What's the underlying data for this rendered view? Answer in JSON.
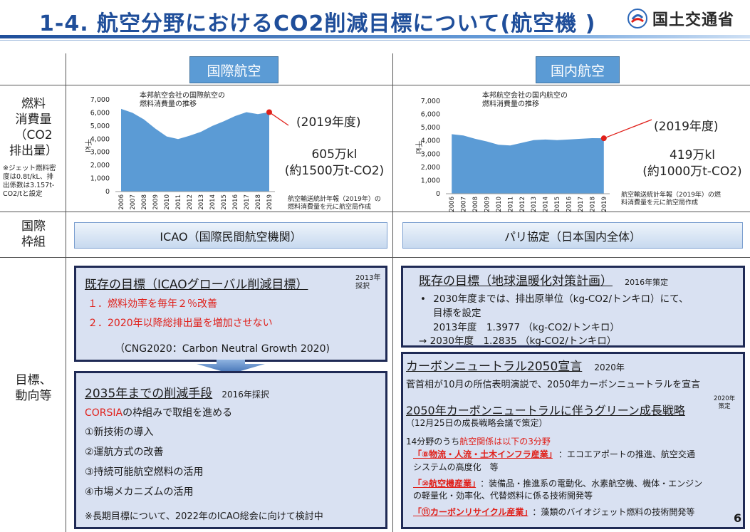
{
  "header": {
    "title": "1-4. 航空分野におけるCO2削減目標について(航空機 )",
    "ministry": "国土交通省"
  },
  "columns": {
    "international": "国際航空",
    "domestic": "国内航空"
  },
  "rows": {
    "fuel_label": [
      "燃料",
      "消費量",
      "（CO2",
      "排出量）"
    ],
    "fuel_note": [
      "※ジェット燃料密",
      "度は0.8t/kL、排",
      "出係数は3.157t-",
      "CO2/tと設定"
    ],
    "framework_label": [
      "国際",
      "枠組"
    ],
    "goals_label": [
      "目標、",
      "動向等"
    ]
  },
  "chart_data": [
    {
      "type": "area",
      "title": "本邦航空会社の国際航空の燃料消費量の推移",
      "title_lines": [
        "本邦航空会社の国際航空の",
        "燃料消費量の推移"
      ],
      "ylabel": "千kl",
      "ylim": [
        0,
        7000
      ],
      "yticks": [
        "7,000",
        "6,000",
        "5,000",
        "4,000",
        "3,000",
        "2,000",
        "1,000",
        "0"
      ],
      "x": [
        "2006",
        "2007",
        "2008",
        "2009",
        "2010",
        "2011",
        "2012",
        "2013",
        "2014",
        "2015",
        "2016",
        "2017",
        "2018",
        "2019"
      ],
      "values": [
        6300,
        6000,
        5500,
        4800,
        4200,
        4000,
        4250,
        4550,
        5000,
        5350,
        5750,
        6050,
        5900,
        6050
      ],
      "color": "#5b9bd5",
      "marker_year": "(2019年度)",
      "marker_value_lines": [
        "605万kl",
        "(約1500万t-CO2)"
      ],
      "source_lines": [
        "航空輸送統計年報（2019年）の",
        "燃料消費量を元に航空局作成"
      ]
    },
    {
      "type": "area",
      "title": "本邦航空会社の国内航空の燃料消費量の推移",
      "title_lines": [
        "本邦航空会社の国内航空の",
        "燃料消費量の推移"
      ],
      "ylabel": "千kl",
      "ylim": [
        0,
        7000
      ],
      "yticks": [
        "7,000",
        "6,000",
        "5,000",
        "4,000",
        "3,000",
        "2,000",
        "1,000",
        "0"
      ],
      "x": [
        "2006",
        "2007",
        "2008",
        "2009",
        "2010",
        "2011",
        "2012",
        "2013",
        "2014",
        "2015",
        "2016",
        "2017",
        "2018",
        "2019"
      ],
      "values": [
        4500,
        4400,
        4150,
        3950,
        3700,
        3650,
        3850,
        4050,
        4100,
        4050,
        4100,
        4150,
        4200,
        4190
      ],
      "color": "#5b9bd5",
      "marker_year": "(2019年度)",
      "marker_value_lines": [
        "419万kl",
        "(約1000万t-CO2)"
      ],
      "source_lines": [
        "航空輸送統計年報（2019年）の燃",
        "料消費量を元に航空局作成"
      ]
    }
  ],
  "frameworks": {
    "international": "ICAO（国際民間航空機関）",
    "domestic": "パリ協定（日本国内全体）"
  },
  "intl_existing": {
    "heading": "既存の目標（ICAOグローバル削減目標）",
    "year_lines": [
      "2013年",
      "採択"
    ],
    "item1": "１．燃料効率を毎年２％改善",
    "item2": "２．2020年以降総排出量を増加させない",
    "note": "（CNG2020：Carbon Neutral Growth 2020)"
  },
  "intl_2035": {
    "heading": "2035年までの削減手段",
    "year": "2016年採択",
    "corsia": "CORSIA",
    "corsia_rest": "の枠組みで取組を進める",
    "items": [
      "①新技術の導入",
      "②運航方式の改善",
      "③持続可能航空燃料の活用",
      "④市場メカニズムの活用"
    ],
    "note": "※長期目標について、2022年のICAO総会に向けて検討中"
  },
  "dom_existing": {
    "heading": "既存の目標（地球温暖化対策計画）",
    "year": "2016年策定",
    "bullet": "•",
    "line1": "2030年度までは、排出原単位（kg-CO2/トンキロ）にて、",
    "line2": "目標を設定",
    "line3": "2013年度　1.3977 （kg-CO2/トンキロ）",
    "line4": "→ 2030年度　1.2835 （kg-CO2/トンキロ）"
  },
  "dom_2050": {
    "heading": "カーボンニュートラル2050宣言",
    "year": "2020年",
    "text": "菅首相が10月の所信表明演説で、2050年カーボンニュートラルを宣言",
    "strategy": "2050年カーボンニュートラルに伴うグリーン成長戦略",
    "strategy_year_lines": [
      "2020年",
      "策定"
    ],
    "strategy_note": "（12月25日の成長戦略会議で策定）",
    "intro_a": "14分野のうち",
    "intro_b": "航空関係は以下の3分野",
    "f8_label": "「⑧物流・人流・土木インフラ産業」",
    "f8_text_a": "：エコエアポートの推進、航空交通",
    "f8_text_b": "システムの高度化　等",
    "f10_label": "「⑩航空機産業」",
    "f10_text_a": "：装備品・推進系の電動化、水素航空機、機体・エンジン",
    "f10_text_b": "の軽量化・効率化、代替燃料に係る技術開発等",
    "f11_label": "「⑪カーボンリサイクル産業」",
    "f11_text": "：藻類のバイオジェット燃料の技術開発等"
  },
  "page_number": "6"
}
